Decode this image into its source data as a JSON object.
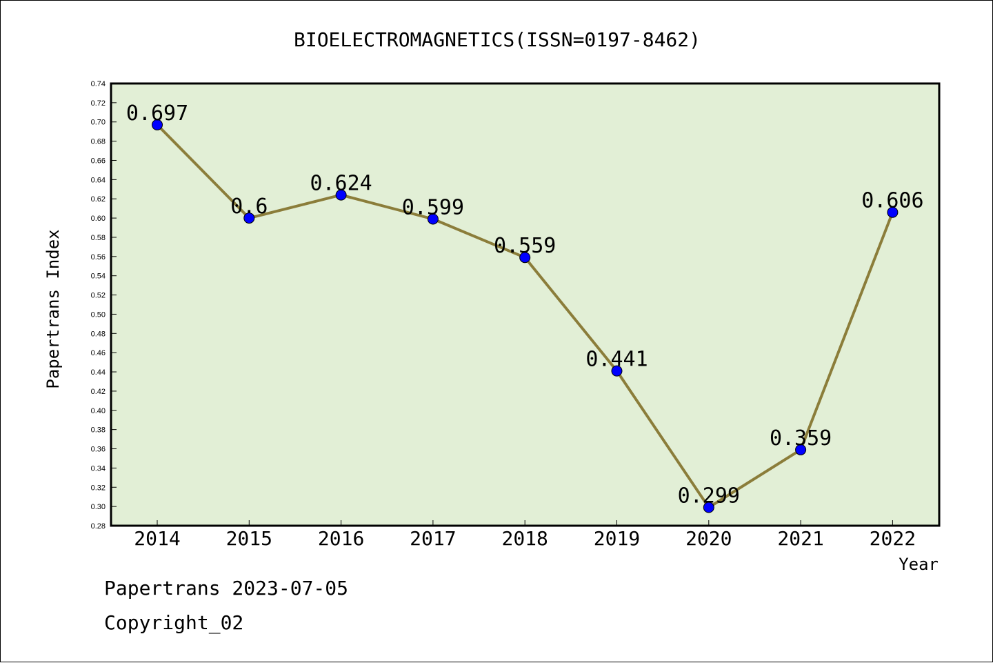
{
  "chart_data": {
    "type": "line",
    "title": "BIOELECTROMAGNETICS(ISSN=0197-8462)",
    "xlabel": "Year",
    "ylabel": "Papertrans Index",
    "categories": [
      "2014",
      "2015",
      "2016",
      "2017",
      "2018",
      "2019",
      "2020",
      "2021",
      "2022"
    ],
    "series": [
      {
        "values": [
          0.697,
          0.6,
          0.624,
          0.599,
          0.559,
          0.441,
          0.299,
          0.359,
          0.606
        ]
      }
    ],
    "data_labels": [
      "0.697",
      "0.6",
      "0.624",
      "0.599",
      "0.559",
      "0.441",
      "0.299",
      "0.359",
      "0.606"
    ],
    "ylim": [
      0.28,
      0.74
    ],
    "yticks": [
      "0.28",
      "0.30",
      "0.32",
      "0.34",
      "0.36",
      "0.38",
      "0.40",
      "0.42",
      "0.44",
      "0.46",
      "0.48",
      "0.50",
      "0.52",
      "0.54",
      "0.56",
      "0.58",
      "0.60",
      "0.62",
      "0.64",
      "0.66",
      "0.68",
      "0.70",
      "0.72",
      "0.74"
    ],
    "grid": false,
    "legend": "none",
    "colors": {
      "plot_background": "#e2efd6",
      "line": "#8b7d3a",
      "marker": "#0000ff"
    }
  },
  "footer": {
    "source_line": "Papertrans 2023-07-05",
    "copyright_line": "Copyright_02"
  }
}
